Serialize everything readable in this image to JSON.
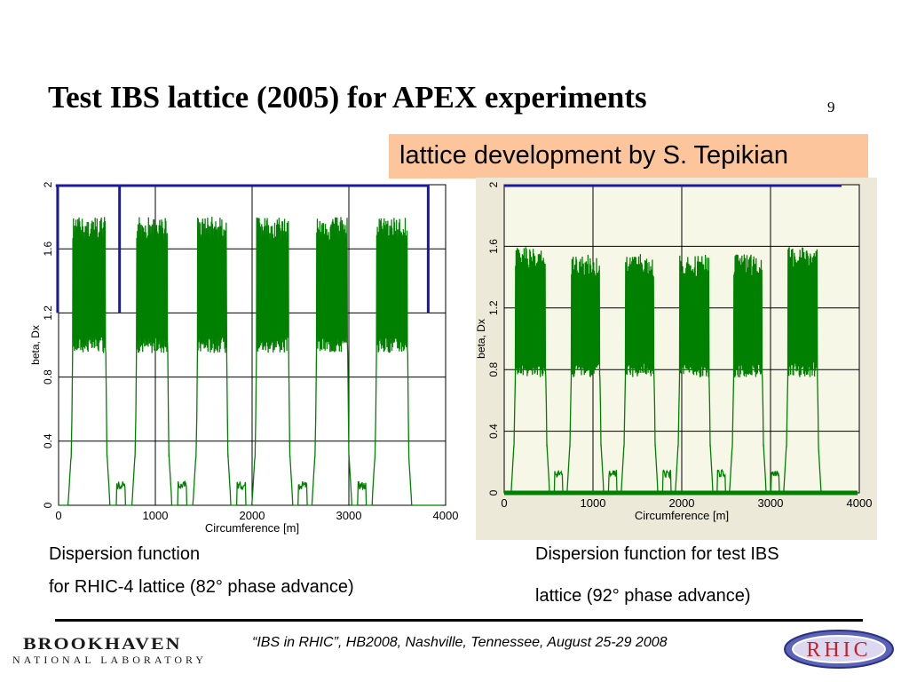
{
  "slide": {
    "title": "Test IBS lattice (2005) for APEX experiments",
    "page_number": "9",
    "banner": "lattice development by S. Tepikian",
    "caption_left_line1": "Dispersion function",
    "caption_left_line2": "for RHIC-4 lattice (82° phase advance)",
    "caption_right_line1": "Dispersion function for test IBS",
    "caption_right_line2": "lattice (92° phase  advance)",
    "footer": "“IBS in RHIC”, HB2008, Nashville, Tennessee, August 25-29  2008",
    "logo_left_line1": "BROOKHAVEN",
    "logo_left_line2": "NATIONAL LABORATORY",
    "logo_right": "RHIC"
  },
  "colors": {
    "dispersion": "#008000",
    "beta_line": "#1a1aa0",
    "grid": "#000000",
    "right_bg": "#ece9d8"
  },
  "chart_data": [
    {
      "type": "line",
      "xlabel": "Circumference [m]",
      "ylabel": "beta, Dx",
      "xlim": [
        0,
        4000
      ],
      "ylim": [
        0,
        2
      ],
      "xticks": [
        "0",
        "1000",
        "2000",
        "3000",
        "4000"
      ],
      "yticks": [
        "0",
        "0.4",
        "0.8",
        "1.2",
        "1.6",
        "2"
      ],
      "grid": true,
      "arcs": [
        {
          "start": 130,
          "end": 500,
          "low": 0.95,
          "high": 1.8
        },
        {
          "start": 790,
          "end": 1140,
          "low": 0.95,
          "high": 1.8
        },
        {
          "start": 1420,
          "end": 1750,
          "low": 0.95,
          "high": 1.8
        },
        {
          "start": 2030,
          "end": 2390,
          "low": 0.95,
          "high": 1.8
        },
        {
          "start": 2650,
          "end": 3000,
          "low": 0.95,
          "high": 1.8
        },
        {
          "start": 3270,
          "end": 3620,
          "low": 0.95,
          "high": 1.8
        }
      ],
      "beta_spikes": [
        {
          "x": -10,
          "low": 1.2
        },
        {
          "x": 630,
          "low": 1.2
        },
        {
          "x": 3820,
          "low": 1.2
        }
      ]
    },
    {
      "type": "line",
      "xlabel": "Circumference [m]",
      "ylabel": "beta, Dx",
      "xlim": [
        0,
        4000
      ],
      "ylim": [
        0,
        2
      ],
      "xticks": [
        "0",
        "1000",
        "2000",
        "3000",
        "4000"
      ],
      "yticks": [
        "0",
        "0.4",
        "0.8",
        "1.2",
        "1.6",
        "2"
      ],
      "grid": true,
      "arcs": [
        {
          "start": 110,
          "end": 480,
          "low": 0.75,
          "high": 1.6
        },
        {
          "start": 740,
          "end": 1090,
          "low": 0.75,
          "high": 1.55
        },
        {
          "start": 1350,
          "end": 1700,
          "low": 0.75,
          "high": 1.55
        },
        {
          "start": 1960,
          "end": 2320,
          "low": 0.75,
          "high": 1.55
        },
        {
          "start": 2570,
          "end": 2920,
          "low": 0.75,
          "high": 1.55
        },
        {
          "start": 3180,
          "end": 3540,
          "low": 0.75,
          "high": 1.6
        }
      ],
      "beta_spikes": []
    }
  ]
}
